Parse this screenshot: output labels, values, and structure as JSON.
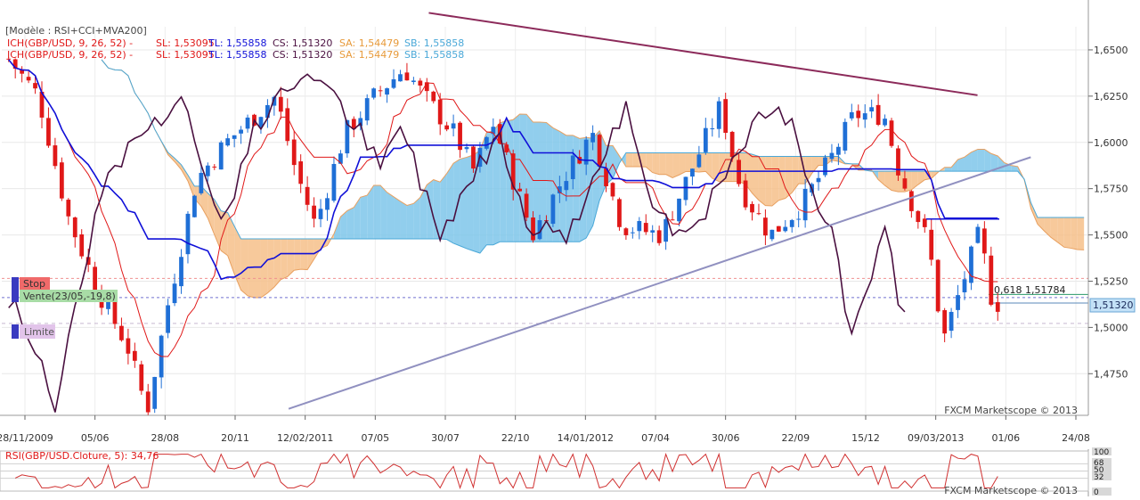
{
  "chart_data": {
    "type": "candlestick",
    "instrument": "GBP/USD",
    "header_lines": [
      "[Modèle : RSI+CCI+MVA200]",
      "ICH(GBP/USD, 9, 26, 52) -",
      "SL: 1,53095",
      "TL: 1,55858",
      "CS: 1,51320",
      "SA: 1,54479",
      "SB: 1,55858"
    ],
    "ichimoku": {
      "params": "9, 26, 52",
      "sl": 1.53095,
      "tl": 1.55858,
      "cs": 1.5132,
      "sa": 1.54479,
      "sb": 1.55858
    },
    "y_ticks": [
      1.475,
      1.5,
      1.525,
      1.55,
      1.575,
      1.6,
      1.625,
      1.65
    ],
    "y_tick_labels": [
      "1,4750",
      "1,5000",
      "1,5250",
      "1,5500",
      "1,5750",
      "1,6000",
      "1,6250",
      "1,6500"
    ],
    "ylim": [
      1.4525,
      1.6625
    ],
    "x_labels": [
      "28/11/2009",
      "05/06",
      "28/08",
      "20/11",
      "12/02/2011",
      "07/05",
      "30/07",
      "22/10",
      "14/01/2012",
      "07/04",
      "30/06",
      "22/09",
      "15/12",
      "09/03/2013",
      "01/06",
      "24/08"
    ],
    "current_price": 1.5132,
    "current_price_label": "1,51320",
    "fib_label": "0,618 1,51784",
    "fib_level": 1.51784,
    "order_levels": [
      {
        "label": "Stop",
        "price": 1.5265,
        "color": "#f06a6a"
      },
      {
        "label": "Vente(23/05,-19,8)",
        "price": 1.519,
        "color": "#86c784"
      },
      {
        "label": "Limite",
        "price": 1.5022,
        "color": "#cfa6d8"
      }
    ],
    "trendlines": [
      {
        "name": "resistance",
        "from": [
          0.393,
          1.67
        ],
        "to": [
          0.898,
          1.6255
        ]
      },
      {
        "name": "support",
        "from": [
          0.264,
          1.456
        ],
        "to": [
          0.947,
          1.592
        ]
      }
    ],
    "watermark": "FXCM Marketscope © 2013",
    "rsi": {
      "label": "RSI(GBP/USD.Cloture, 5): 34,76",
      "value": 34.76,
      "levels": [
        "100",
        "68",
        "50",
        "32",
        "0"
      ],
      "watermark": "FXCM Marketscope © 2013"
    },
    "colors": {
      "bull": "#1f6fd6",
      "bear": "#e01818",
      "tenkan": "#e01818",
      "kijun": "#1010d8",
      "chikou": "#4a1040",
      "cloud_bull": "#7ec6ea",
      "cloud_bear": "#f6bf8a",
      "resistance": "#8c2a5a",
      "support": "#9090c0"
    }
  }
}
